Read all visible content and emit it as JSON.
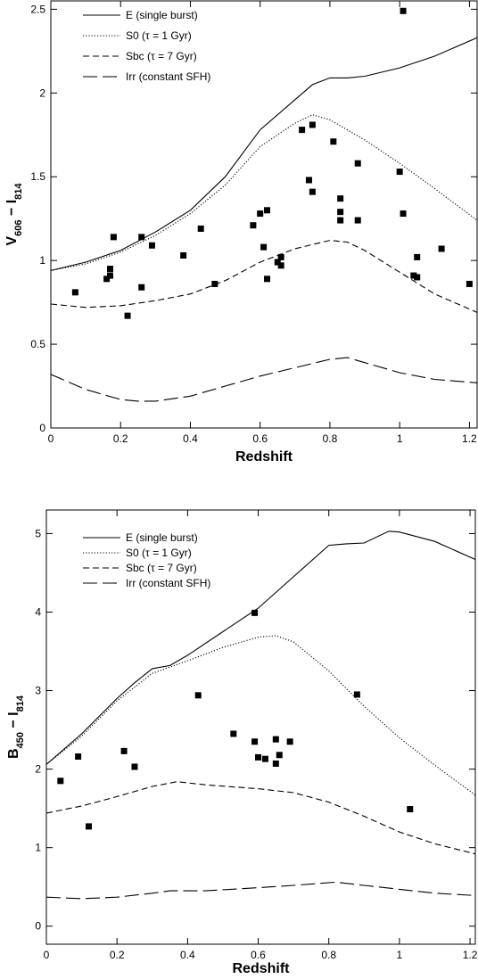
{
  "chart_data": [
    {
      "type": "line",
      "xlabel": "Redshift",
      "ylabel": [
        {
          "text": "V"
        },
        {
          "text": "606",
          "sub": true
        },
        {
          "text": " − "
        },
        {
          "text": "I"
        },
        {
          "text": "814",
          "sub": true
        }
      ],
      "xlim": [
        0,
        1.222
      ],
      "ylim": [
        0,
        2.55
      ],
      "xticks": [
        0,
        0.2,
        0.4,
        0.6,
        0.8,
        1,
        1.2
      ],
      "yticks": [
        0,
        0.5,
        1,
        1.5,
        2,
        2.5
      ],
      "legend": "upper left",
      "series": [
        {
          "name": "E (single burst)",
          "color": "#000000",
          "linestyle": "solid",
          "x": [
            0,
            0.1,
            0.2,
            0.3,
            0.4,
            0.5,
            0.6,
            0.7,
            0.75,
            0.8,
            0.85,
            0.9,
            1.0,
            1.1,
            1.222
          ],
          "values": [
            0.94,
            0.99,
            1.06,
            1.17,
            1.3,
            1.5,
            1.78,
            1.96,
            2.05,
            2.09,
            2.09,
            2.1,
            2.15,
            2.22,
            2.33
          ]
        },
        {
          "name": "S0 (τ = 1 Gyr)",
          "color": "#000000",
          "linestyle": "dotted",
          "x": [
            0,
            0.1,
            0.2,
            0.3,
            0.4,
            0.5,
            0.6,
            0.7,
            0.75,
            0.8,
            0.9,
            1.0,
            1.1,
            1.222
          ],
          "values": [
            0.94,
            0.98,
            1.05,
            1.15,
            1.28,
            1.45,
            1.68,
            1.82,
            1.87,
            1.84,
            1.72,
            1.58,
            1.43,
            1.24
          ]
        },
        {
          "name": "Sbc (τ = 7 Gyr)",
          "color": "#000000",
          "linestyle": "dashed",
          "x": [
            0,
            0.1,
            0.2,
            0.3,
            0.4,
            0.5,
            0.6,
            0.7,
            0.8,
            0.85,
            0.9,
            1.0,
            1.1,
            1.222
          ],
          "values": [
            0.74,
            0.72,
            0.73,
            0.76,
            0.8,
            0.88,
            0.99,
            1.07,
            1.12,
            1.11,
            1.06,
            0.93,
            0.8,
            0.69
          ]
        },
        {
          "name": "Irr (constant SFH)",
          "color": "#000000",
          "linestyle": "longdash",
          "x": [
            0,
            0.1,
            0.2,
            0.25,
            0.3,
            0.4,
            0.5,
            0.6,
            0.7,
            0.8,
            0.85,
            0.9,
            1.0,
            1.1,
            1.222
          ],
          "values": [
            0.32,
            0.23,
            0.17,
            0.16,
            0.16,
            0.19,
            0.25,
            0.31,
            0.36,
            0.41,
            0.42,
            0.39,
            0.33,
            0.29,
            0.27
          ]
        }
      ],
      "points": {
        "color": "#000000",
        "marker": "square",
        "x": [
          0.07,
          0.16,
          0.17,
          0.17,
          0.18,
          0.26,
          0.26,
          0.22,
          0.29,
          0.38,
          0.43,
          0.47,
          0.58,
          0.6,
          0.62,
          0.61,
          0.62,
          0.65,
          0.66,
          0.66,
          0.72,
          0.75,
          0.74,
          0.75,
          0.81,
          0.83,
          0.83,
          0.83,
          0.88,
          0.88,
          1.0,
          1.01,
          1.04,
          1.05,
          1.05,
          1.12,
          1.2,
          1.01
        ],
        "values": [
          0.81,
          0.89,
          0.95,
          0.91,
          1.14,
          1.14,
          0.84,
          0.67,
          1.09,
          1.03,
          1.19,
          0.86,
          1.21,
          1.28,
          1.3,
          1.08,
          0.89,
          0.99,
          1.02,
          0.97,
          1.78,
          1.81,
          1.48,
          1.41,
          1.71,
          1.37,
          1.29,
          1.24,
          1.58,
          1.24,
          1.53,
          1.28,
          0.91,
          0.9,
          1.02,
          1.07,
          0.86,
          2.49
        ]
      }
    },
    {
      "type": "line",
      "xlabel": "Redshift",
      "ylabel": [
        {
          "text": "B"
        },
        {
          "text": "450",
          "sub": true
        },
        {
          "text": " − "
        },
        {
          "text": "I"
        },
        {
          "text": "814",
          "sub": true
        }
      ],
      "xlim": [
        0,
        1.215
      ],
      "ylim": [
        -0.23,
        5.3
      ],
      "xticks": [
        0,
        0.2,
        0.4,
        0.6,
        0.8,
        1,
        1.2
      ],
      "yticks": [
        0,
        1,
        2,
        3,
        4,
        5
      ],
      "legend": "upper left",
      "series": [
        {
          "name": "E (single burst)",
          "color": "#000000",
          "linestyle": "solid",
          "x": [
            0,
            0.1,
            0.2,
            0.25,
            0.3,
            0.35,
            0.4,
            0.5,
            0.6,
            0.7,
            0.8,
            0.85,
            0.9,
            0.97,
            1.0,
            1.1,
            1.215
          ],
          "values": [
            2.06,
            2.45,
            2.9,
            3.1,
            3.28,
            3.32,
            3.45,
            3.75,
            4.05,
            4.45,
            4.85,
            4.87,
            4.88,
            5.03,
            5.02,
            4.9,
            4.67
          ]
        },
        {
          "name": "S0 (τ = 1 Gyr)",
          "color": "#000000",
          "linestyle": "dotted",
          "x": [
            0,
            0.1,
            0.2,
            0.3,
            0.4,
            0.5,
            0.6,
            0.65,
            0.7,
            0.8,
            0.9,
            1.0,
            1.1,
            1.215
          ],
          "values": [
            2.06,
            2.42,
            2.87,
            3.22,
            3.38,
            3.55,
            3.68,
            3.7,
            3.62,
            3.25,
            2.8,
            2.4,
            2.05,
            1.67
          ]
        },
        {
          "name": "Sbc (τ = 7 Gyr)",
          "color": "#000000",
          "linestyle": "dashed",
          "x": [
            0,
            0.1,
            0.2,
            0.3,
            0.37,
            0.45,
            0.6,
            0.7,
            0.8,
            0.9,
            1.0,
            1.1,
            1.215
          ],
          "values": [
            1.44,
            1.53,
            1.65,
            1.78,
            1.84,
            1.8,
            1.75,
            1.7,
            1.58,
            1.4,
            1.2,
            1.05,
            0.92
          ]
        },
        {
          "name": "Irr (constant SFH)",
          "color": "#000000",
          "linestyle": "longdash",
          "x": [
            0,
            0.1,
            0.2,
            0.3,
            0.35,
            0.45,
            0.6,
            0.7,
            0.82,
            0.9,
            1.0,
            1.1,
            1.215
          ],
          "values": [
            0.37,
            0.35,
            0.37,
            0.42,
            0.45,
            0.45,
            0.49,
            0.52,
            0.56,
            0.52,
            0.47,
            0.42,
            0.39
          ]
        }
      ],
      "points": {
        "color": "#000000",
        "marker": "square",
        "x": [
          0.04,
          0.09,
          0.12,
          0.22,
          0.25,
          0.43,
          0.59,
          0.53,
          0.59,
          0.6,
          0.62,
          0.65,
          0.65,
          0.66,
          0.69,
          0.88,
          1.03
        ],
        "values": [
          1.85,
          2.16,
          1.27,
          2.23,
          2.03,
          2.94,
          3.99,
          2.45,
          2.35,
          2.15,
          2.13,
          2.38,
          2.07,
          2.18,
          2.35,
          2.95,
          1.49
        ]
      }
    }
  ]
}
